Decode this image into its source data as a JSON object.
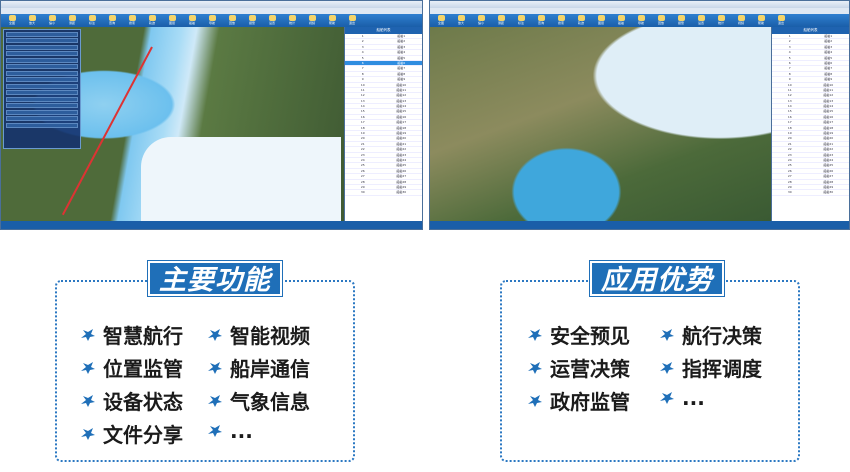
{
  "left_screenshot": {
    "toolbar_buttons": [
      "全图",
      "放大",
      "缩小",
      "测距",
      "标注",
      "查询",
      "搜索",
      "轨迹",
      "图层",
      "船舶",
      "导航",
      "回放",
      "报警",
      "设置",
      "统计",
      "视频",
      "帮助",
      "退出"
    ],
    "list_header": "船舶列表",
    "list_rows": [
      [
        "1",
        "船舶1"
      ],
      [
        "2",
        "船舶2"
      ],
      [
        "3",
        "船舶3"
      ],
      [
        "4",
        "船舶4"
      ],
      [
        "5",
        "船舶5"
      ],
      [
        "6",
        "船舶6"
      ],
      [
        "7",
        "船舶7"
      ],
      [
        "8",
        "船舶8"
      ],
      [
        "9",
        "船舶9"
      ],
      [
        "10",
        "船舶10"
      ],
      [
        "11",
        "船舶11"
      ],
      [
        "12",
        "船舶12"
      ],
      [
        "13",
        "船舶13"
      ],
      [
        "14",
        "船舶14"
      ],
      [
        "15",
        "船舶15"
      ],
      [
        "16",
        "船舶16"
      ],
      [
        "17",
        "船舶17"
      ],
      [
        "18",
        "船舶18"
      ],
      [
        "19",
        "船舶19"
      ],
      [
        "20",
        "船舶20"
      ],
      [
        "21",
        "船舶21"
      ],
      [
        "22",
        "船舶22"
      ],
      [
        "23",
        "船舶23"
      ],
      [
        "24",
        "船舶24"
      ],
      [
        "25",
        "船舶25"
      ],
      [
        "26",
        "船舶26"
      ],
      [
        "27",
        "船舶27"
      ],
      [
        "28",
        "船舶28"
      ],
      [
        "29",
        "船舶29"
      ],
      [
        "30",
        "船舶30"
      ]
    ],
    "selected_row": 6
  },
  "right_screenshot": {
    "list_header": "船舶列表"
  },
  "features": {
    "title": "主要功能",
    "items": [
      "智慧航行",
      "智能视频",
      "位置监管",
      "船岸通信",
      "设备状态",
      "气象信息",
      "文件分享",
      "..."
    ]
  },
  "advantages": {
    "title": "应用优势",
    "items": [
      "安全预见",
      "航行决策",
      "运营决策",
      "指挥调度",
      "政府监管",
      "..."
    ]
  },
  "colors": {
    "accent": "#1f6fb8",
    "border": "#2b78c2"
  }
}
